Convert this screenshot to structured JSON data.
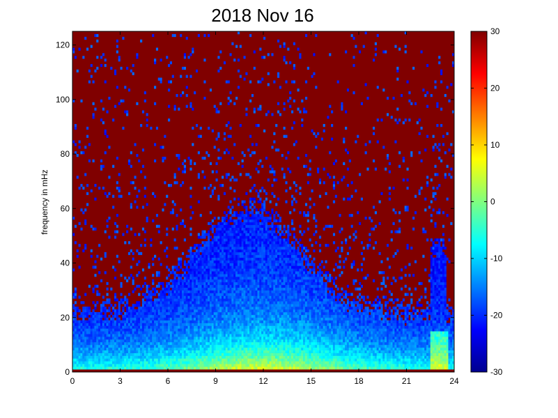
{
  "chart_data": {
    "type": "heatmap",
    "title": "2018 Nov 16",
    "xlabel": "",
    "ylabel": "frequency in mHz",
    "xlim": [
      0,
      24
    ],
    "ylim": [
      0,
      125
    ],
    "x_ticks": [
      "0",
      "3",
      "6",
      "9",
      "12",
      "15",
      "18",
      "21",
      "24"
    ],
    "y_ticks": [
      "0",
      "20",
      "40",
      "60",
      "80",
      "100",
      "120"
    ],
    "colorbar": {
      "range": [
        -30,
        30
      ],
      "ticks": [
        "30",
        "20",
        "10",
        "0",
        "-10",
        "-20",
        "-30"
      ],
      "colormap": "jet"
    },
    "x_unit_hint": "hours (UT)",
    "grid": "off",
    "description_of_values": "Power spectral density estimate; low-frequency band below ~10 mHz near 5–15, power decreasing with frequency; envelope of activity reaches ~60 mHz between 8–14 h; values above the envelope saturate at +30."
  }
}
